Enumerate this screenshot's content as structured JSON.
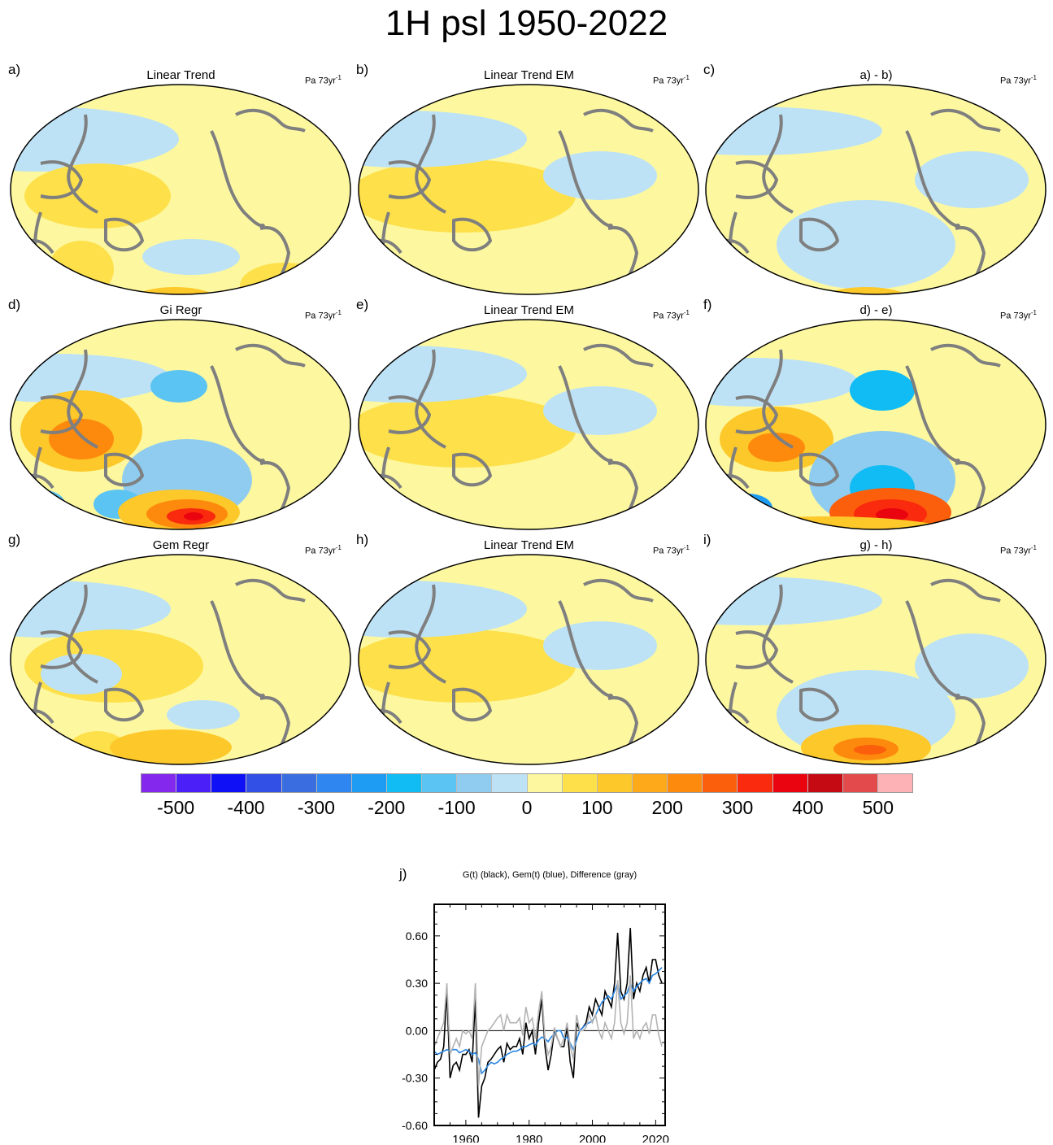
{
  "title": "1H psl 1950-2022",
  "units": {
    "base": "Pa 73yr",
    "exp": "-1"
  },
  "panels": [
    {
      "letter": "a)",
      "title": "Linear Trend",
      "field": "a"
    },
    {
      "letter": "b)",
      "title": "Linear Trend EM",
      "field": "em"
    },
    {
      "letter": "c)",
      "title": "a) - b)",
      "field": "c"
    },
    {
      "letter": "d)",
      "title": "Gi Regr",
      "field": "d"
    },
    {
      "letter": "e)",
      "title": "Linear Trend EM",
      "field": "em"
    },
    {
      "letter": "f)",
      "title": "d) - e)",
      "field": "f"
    },
    {
      "letter": "g)",
      "title": "Gem Regr",
      "field": "g"
    },
    {
      "letter": "h)",
      "title": "Linear Trend EM",
      "field": "em"
    },
    {
      "letter": "i)",
      "title": "g) - h)",
      "field": "i"
    }
  ],
  "colorbar": {
    "colors": [
      "#8428ee",
      "#4b1ff8",
      "#0f10f5",
      "#3350e6",
      "#3a6ee0",
      "#2f86f0",
      "#1e9bf2",
      "#10bcf3",
      "#5cc4f2",
      "#8fccef",
      "#bde2f5",
      "#fdf8a0",
      "#fde04a",
      "#fdc82a",
      "#fda91a",
      "#fd8a0d",
      "#fc5f0c",
      "#f92a0d",
      "#ea0410",
      "#c50a13",
      "#e34a4c",
      "#fdb2b6"
    ],
    "labels": [
      "-500",
      "-400",
      "-300",
      "-200",
      "-100",
      "0",
      "100",
      "200",
      "300",
      "400",
      "500"
    ],
    "levels": [
      -500,
      -400,
      -300,
      -200,
      -100,
      0,
      100,
      200,
      300,
      400,
      500
    ]
  },
  "chart_data": {
    "type": "line",
    "letter": "j)",
    "title": "G(t)  (black), Gem(t) (blue), Difference (gray)",
    "xlabel": "",
    "ylabel": "",
    "xlim": [
      1950,
      2023
    ],
    "ylim": [
      -0.6,
      0.8
    ],
    "xticks": [
      1960,
      1980,
      2000,
      2020
    ],
    "xtick_labels": [
      "1960",
      "1980",
      "2000",
      "2020"
    ],
    "yticks": [
      -0.6,
      -0.3,
      0.0,
      0.3,
      0.6
    ],
    "ytick_labels": [
      "-0.60",
      "-0.30",
      "0.00",
      "0.30",
      "0.60"
    ],
    "reference_line": 0.0,
    "series": [
      {
        "color": "#000000",
        "x": [
          1950,
          1951,
          1952,
          1953,
          1954,
          1955,
          1956,
          1957,
          1958,
          1959,
          1960,
          1961,
          1962,
          1963,
          1964,
          1965,
          1966,
          1967,
          1968,
          1969,
          1970,
          1971,
          1972,
          1973,
          1974,
          1975,
          1976,
          1977,
          1978,
          1979,
          1980,
          1981,
          1982,
          1983,
          1984,
          1985,
          1986,
          1987,
          1988,
          1989,
          1990,
          1991,
          1992,
          1993,
          1994,
          1995,
          1996,
          1997,
          1998,
          1999,
          2000,
          2001,
          2002,
          2003,
          2004,
          2005,
          2006,
          2007,
          2008,
          2009,
          2010,
          2011,
          2012,
          2013,
          2014,
          2015,
          2016,
          2017,
          2018,
          2019,
          2020,
          2021,
          2022
        ],
        "y": [
          -0.25,
          -0.2,
          -0.18,
          -0.1,
          0.25,
          -0.3,
          -0.22,
          -0.2,
          -0.25,
          -0.15,
          -0.15,
          -0.12,
          -0.2,
          0.2,
          -0.55,
          -0.35,
          -0.3,
          -0.2,
          -0.18,
          -0.15,
          -0.12,
          -0.1,
          -0.2,
          -0.08,
          -0.12,
          -0.1,
          -0.1,
          -0.05,
          -0.15,
          0.05,
          -0.05,
          0.0,
          -0.15,
          0.05,
          0.2,
          -0.1,
          -0.25,
          -0.15,
          0.0,
          -0.05,
          -0.1,
          -0.1,
          0.02,
          -0.2,
          -0.3,
          0.05,
          0.0,
          0.02,
          0.05,
          0.15,
          0.1,
          0.2,
          0.15,
          0.1,
          0.25,
          0.2,
          0.15,
          0.3,
          0.62,
          0.25,
          0.2,
          0.3,
          0.65,
          0.2,
          0.3,
          0.25,
          0.35,
          0.4,
          0.3,
          0.45,
          0.45,
          0.35,
          0.3
        ]
      },
      {
        "color": "#2a85e2",
        "x": [
          1950,
          1951,
          1952,
          1953,
          1954,
          1955,
          1956,
          1957,
          1958,
          1959,
          1960,
          1961,
          1962,
          1963,
          1964,
          1965,
          1966,
          1967,
          1968,
          1969,
          1970,
          1971,
          1972,
          1973,
          1974,
          1975,
          1976,
          1977,
          1978,
          1979,
          1980,
          1981,
          1982,
          1983,
          1984,
          1985,
          1986,
          1987,
          1988,
          1989,
          1990,
          1991,
          1992,
          1993,
          1994,
          1995,
          1996,
          1997,
          1998,
          1999,
          2000,
          2001,
          2002,
          2003,
          2004,
          2005,
          2006,
          2007,
          2008,
          2009,
          2010,
          2011,
          2012,
          2013,
          2014,
          2015,
          2016,
          2017,
          2018,
          2019,
          2020,
          2021,
          2022
        ],
        "y": [
          -0.13,
          -0.15,
          -0.14,
          -0.13,
          -0.12,
          -0.13,
          -0.12,
          -0.12,
          -0.14,
          -0.13,
          -0.12,
          -0.13,
          -0.15,
          -0.14,
          -0.18,
          -0.27,
          -0.25,
          -0.22,
          -0.2,
          -0.21,
          -0.2,
          -0.18,
          -0.17,
          -0.15,
          -0.14,
          -0.13,
          -0.13,
          -0.12,
          -0.1,
          -0.1,
          -0.09,
          -0.08,
          -0.09,
          -0.06,
          -0.04,
          -0.05,
          -0.07,
          -0.04,
          -0.02,
          0.0,
          0.0,
          -0.05,
          -0.04,
          -0.08,
          -0.12,
          -0.06,
          0.0,
          0.02,
          0.04,
          0.05,
          0.06,
          0.1,
          0.14,
          0.18,
          0.2,
          0.22,
          0.2,
          0.25,
          0.3,
          0.2,
          0.22,
          0.24,
          0.3,
          0.25,
          0.28,
          0.3,
          0.32,
          0.33,
          0.3,
          0.35,
          0.36,
          0.38,
          0.4
        ]
      },
      {
        "color": "#b3b3b3",
        "x": [
          1950,
          1951,
          1952,
          1953,
          1954,
          1955,
          1956,
          1957,
          1958,
          1959,
          1960,
          1961,
          1962,
          1963,
          1964,
          1965,
          1966,
          1967,
          1968,
          1969,
          1970,
          1971,
          1972,
          1973,
          1974,
          1975,
          1976,
          1977,
          1978,
          1979,
          1980,
          1981,
          1982,
          1983,
          1984,
          1985,
          1986,
          1987,
          1988,
          1989,
          1990,
          1991,
          1992,
          1993,
          1994,
          1995,
          1996,
          1997,
          1998,
          1999,
          2000,
          2001,
          2002,
          2003,
          2004,
          2005,
          2006,
          2007,
          2008,
          2009,
          2010,
          2011,
          2012,
          2013,
          2014,
          2015,
          2016,
          2017,
          2018,
          2019,
          2020,
          2021,
          2022
        ],
        "y": [
          -0.1,
          -0.05,
          0.0,
          0.05,
          0.3,
          -0.15,
          -0.1,
          -0.05,
          -0.1,
          0.0,
          -0.02,
          0.0,
          -0.05,
          0.3,
          -0.35,
          -0.1,
          -0.05,
          0.0,
          0.02,
          0.05,
          0.08,
          0.1,
          0.0,
          0.1,
          0.05,
          0.05,
          0.05,
          0.08,
          -0.03,
          0.15,
          0.05,
          0.08,
          -0.05,
          0.12,
          0.25,
          -0.05,
          -0.15,
          -0.1,
          0.02,
          -0.05,
          -0.1,
          -0.05,
          0.05,
          -0.1,
          -0.18,
          0.1,
          0.0,
          0.0,
          0.02,
          0.1,
          0.05,
          0.1,
          0.0,
          -0.05,
          0.05,
          0.0,
          -0.05,
          0.05,
          0.32,
          0.05,
          -0.02,
          0.05,
          0.35,
          -0.05,
          0.0,
          -0.05,
          0.02,
          0.05,
          -0.02,
          0.1,
          0.1,
          -0.03,
          -0.1
        ]
      }
    ]
  }
}
